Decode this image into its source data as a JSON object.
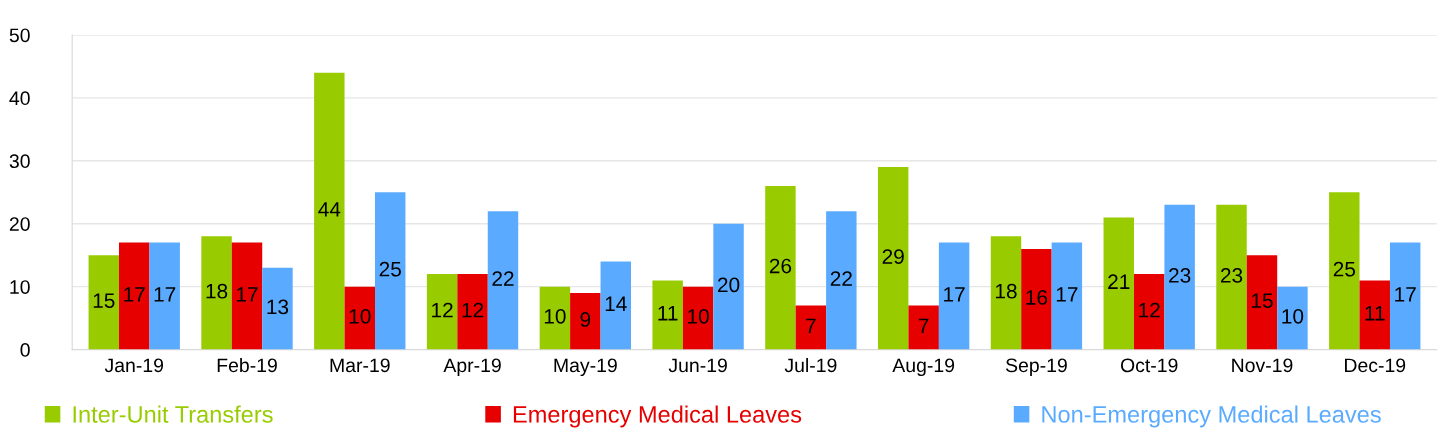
{
  "chart_data": {
    "type": "bar",
    "categories": [
      "Jan-19",
      "Feb-19",
      "Mar-19",
      "Apr-19",
      "May-19",
      "Jun-19",
      "Jul-19",
      "Aug-19",
      "Sep-19",
      "Oct-19",
      "Nov-19",
      "Dec-19"
    ],
    "series": [
      {
        "name": "Inter-Unit Transfers",
        "color": "#99cc00",
        "values": [
          15,
          18,
          44,
          12,
          10,
          11,
          26,
          29,
          18,
          21,
          23,
          25
        ]
      },
      {
        "name": "Emergency Medical Leaves",
        "color": "#e60000",
        "values": [
          17,
          17,
          10,
          12,
          9,
          10,
          7,
          7,
          16,
          12,
          15,
          11
        ]
      },
      {
        "name": "Non-Emergency Medical Leaves",
        "color": "#5aabff",
        "values": [
          17,
          13,
          25,
          22,
          14,
          20,
          22,
          17,
          17,
          23,
          10,
          17
        ]
      }
    ],
    "ylim": [
      0,
      50
    ],
    "yticks": [
      0,
      10,
      20,
      30,
      40,
      50
    ],
    "grid": "y",
    "legend": "bottom",
    "data_labels": true
  }
}
